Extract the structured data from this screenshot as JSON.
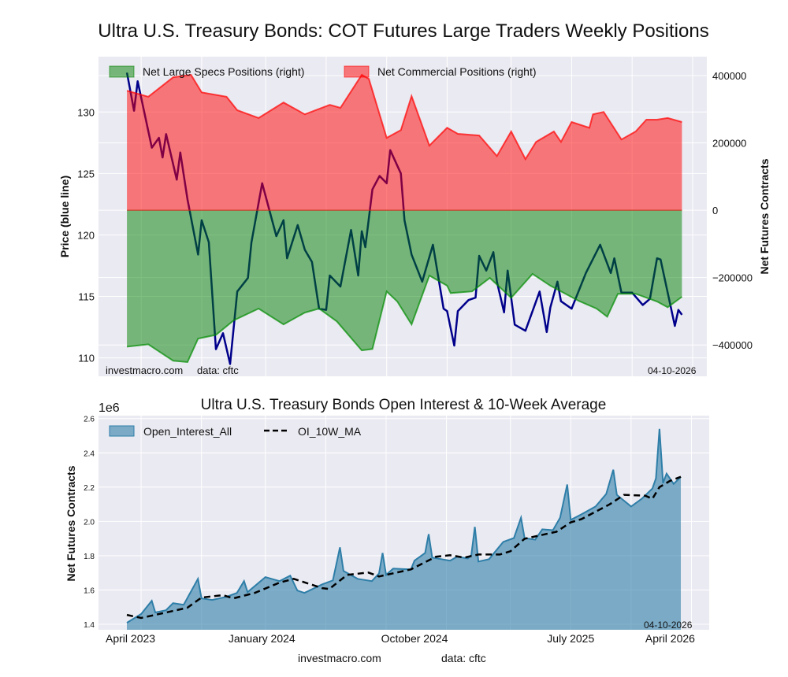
{
  "title": "Ultra U.S. Treasury Bonds: COT Futures Large Traders Weekly Positions",
  "colors": {
    "specs": "#008000",
    "commercial": "#ff0000",
    "price": "#00008b",
    "oi": "#2e7ea8",
    "background": "#eaeaf2"
  },
  "chart_data": [
    {
      "type": "area",
      "x_unit": "weeks since first report",
      "ylabel_left": "Price (blue line)",
      "ylabel_right": "Net Futures Contracts",
      "ylim_left": [
        108.5,
        134.5
      ],
      "ylim_right": [
        -493000,
        456000
      ],
      "xlim": [
        -8,
        163
      ],
      "left_ticks": [
        110,
        115,
        120,
        125,
        130
      ],
      "right_ticks": [
        400000,
        200000,
        0,
        -200000,
        -400000
      ],
      "x_grid_weeks": [
        4,
        21,
        39,
        56,
        73,
        90,
        108,
        125,
        142,
        159
      ],
      "grid": true,
      "legend_position": "top",
      "legend": [
        "Net Large Specs Positions (right)",
        "Net Commercial Positions (right)"
      ],
      "annotation_source": "investmacro.com",
      "annotation_data": "data: cftc",
      "annotation_date": "04-10-2026",
      "series": [
        {
          "name": "Net Commercial Positions (right)",
          "axis": "right",
          "points": [
            [
              0,
              355000
            ],
            [
              6,
              337000
            ],
            [
              13,
              395000
            ],
            [
              18,
              402000
            ],
            [
              21,
              350000
            ],
            [
              28,
              337000
            ],
            [
              31,
              297000
            ],
            [
              37,
              274000
            ],
            [
              44,
              320000
            ],
            [
              50,
              285000
            ],
            [
              57,
              313000
            ],
            [
              60,
              304000
            ],
            [
              66,
              402000
            ],
            [
              68,
              390000
            ],
            [
              73,
              215000
            ],
            [
              77,
              238000
            ],
            [
              80,
              339000
            ],
            [
              85,
              192000
            ],
            [
              90,
              245000
            ],
            [
              93,
              227000
            ],
            [
              99,
              222000
            ],
            [
              104,
              161000
            ],
            [
              108,
              234000
            ],
            [
              112,
              152000
            ],
            [
              115,
              203000
            ],
            [
              120,
              234000
            ],
            [
              122,
              203000
            ],
            [
              125,
              262000
            ],
            [
              130,
              245000
            ],
            [
              131,
              285000
            ],
            [
              134,
              292000
            ],
            [
              139,
              210000
            ],
            [
              143,
              234000
            ],
            [
              146,
              269000
            ],
            [
              149,
              269000
            ],
            [
              152,
              274000
            ],
            [
              156,
              262000
            ]
          ]
        },
        {
          "name": "Net Large Specs Positions (right)",
          "axis": "right",
          "points": [
            [
              0,
              -405000
            ],
            [
              6,
              -398000
            ],
            [
              13,
              -447000
            ],
            [
              17,
              -451000
            ],
            [
              20,
              -381000
            ],
            [
              25,
              -370000
            ],
            [
              30,
              -327000
            ],
            [
              37,
              -292000
            ],
            [
              44,
              -339000
            ],
            [
              50,
              -304000
            ],
            [
              54,
              -292000
            ],
            [
              59,
              -330000
            ],
            [
              66,
              -416000
            ],
            [
              69,
              -412000
            ],
            [
              73,
              -241000
            ],
            [
              76,
              -271000
            ],
            [
              80,
              -339000
            ],
            [
              85,
              -194000
            ],
            [
              90,
              -224000
            ],
            [
              91,
              -246000
            ],
            [
              97,
              -241000
            ],
            [
              102,
              -201000
            ],
            [
              108,
              -260000
            ],
            [
              114,
              -189000
            ],
            [
              119,
              -224000
            ],
            [
              127,
              -269000
            ],
            [
              132,
              -292000
            ],
            [
              135,
              -316000
            ],
            [
              138,
              -248000
            ],
            [
              143,
              -248000
            ],
            [
              149,
              -271000
            ],
            [
              152,
              -288000
            ],
            [
              156,
              -257000
            ]
          ]
        },
        {
          "name": "Price",
          "axis": "left",
          "points": [
            [
              0,
              133.2
            ],
            [
              2,
              130.1
            ],
            [
              3,
              132.5
            ],
            [
              7,
              127.1
            ],
            [
              9,
              127.9
            ],
            [
              10,
              126.3
            ],
            [
              11,
              128.2
            ],
            [
              14,
              124.5
            ],
            [
              15,
              126.7
            ],
            [
              17,
              122.9
            ],
            [
              20,
              118.4
            ],
            [
              21,
              121.2
            ],
            [
              23,
              119.4
            ],
            [
              25,
              110.7
            ],
            [
              27,
              112
            ],
            [
              29,
              109.5
            ],
            [
              31,
              115.4
            ],
            [
              34,
              116.5
            ],
            [
              35,
              119.4
            ],
            [
              38,
              124.2
            ],
            [
              42,
              119.9
            ],
            [
              44,
              121.2
            ],
            [
              45,
              118.1
            ],
            [
              48,
              120.8
            ],
            [
              50,
              118.8
            ],
            [
              52,
              117.8
            ],
            [
              54,
              114
            ],
            [
              56,
              113.9
            ],
            [
              57,
              116.7
            ],
            [
              60,
              115.8
            ],
            [
              63,
              120.4
            ],
            [
              65,
              116.7
            ],
            [
              66,
              120.3
            ],
            [
              67,
              119
            ],
            [
              69,
              123.7
            ],
            [
              71,
              124.8
            ],
            [
              73,
              124.2
            ],
            [
              74,
              126.9
            ],
            [
              77,
              125
            ],
            [
              78,
              121.2
            ],
            [
              80,
              118.4
            ],
            [
              83,
              116.2
            ],
            [
              86,
              119.2
            ],
            [
              89,
              114
            ],
            [
              90,
              113.8
            ],
            [
              92,
              111
            ],
            [
              93,
              113.8
            ],
            [
              96,
              114.7
            ],
            [
              98,
              114.9
            ],
            [
              99,
              118.3
            ],
            [
              101,
              117.1
            ],
            [
              103,
              118.6
            ],
            [
              104,
              116.2
            ],
            [
              106,
              113.7
            ],
            [
              107,
              117.1
            ],
            [
              109,
              112.7
            ],
            [
              112,
              112.2
            ],
            [
              116,
              115.4
            ],
            [
              118,
              112.1
            ],
            [
              119,
              114.1
            ],
            [
              121,
              116.2
            ],
            [
              122,
              114.6
            ],
            [
              125,
              114
            ],
            [
              129,
              116.9
            ],
            [
              133,
              119.2
            ],
            [
              136,
              116.9
            ],
            [
              137,
              118.1
            ],
            [
              139,
              115.3
            ],
            [
              142,
              115.3
            ],
            [
              145,
              114.3
            ],
            [
              147,
              114.8
            ],
            [
              149,
              118.1
            ],
            [
              150,
              118
            ],
            [
              154,
              112.6
            ],
            [
              155,
              113.9
            ],
            [
              156,
              113.5
            ]
          ]
        }
      ]
    },
    {
      "type": "area",
      "title": "Ultra U.S. Treasury Bonds Open Interest & 10-Week Average",
      "ylabel": "Net Futures Contracts",
      "y_scale_label": "1e6",
      "ylim": [
        1.368,
        2.617
      ],
      "xlim": [
        -8,
        164
      ],
      "y_ticks": [
        1.4,
        1.6,
        1.8,
        2.0,
        2.2,
        2.4,
        2.6
      ],
      "x_ticks": [
        {
          "week": 1,
          "label": "April 2023"
        },
        {
          "week": 38,
          "label": "January 2024"
        },
        {
          "week": 81,
          "label": "October 2024"
        },
        {
          "week": 125,
          "label": "July 2025"
        },
        {
          "week": 153,
          "label": "April 2026"
        }
      ],
      "x_grid_weeks": [
        4,
        21,
        39,
        56,
        73,
        90,
        108,
        125,
        142,
        159
      ],
      "grid": true,
      "legend_position": "top-left",
      "legend": [
        "Open_Interest_All",
        "OI_10W_MA"
      ],
      "annotation_date": "04-10-2026",
      "series": [
        {
          "name": "Open_Interest_All",
          "points": [
            [
              0,
              1.409
            ],
            [
              4,
              1.46
            ],
            [
              7,
              1.537
            ],
            [
              8,
              1.469
            ],
            [
              11,
              1.482
            ],
            [
              13,
              1.523
            ],
            [
              16,
              1.514
            ],
            [
              20,
              1.665
            ],
            [
              21,
              1.551
            ],
            [
              24,
              1.542
            ],
            [
              28,
              1.56
            ],
            [
              31,
              1.583
            ],
            [
              33,
              1.652
            ],
            [
              34,
              1.588
            ],
            [
              39,
              1.675
            ],
            [
              43,
              1.652
            ],
            [
              46,
              1.684
            ],
            [
              48,
              1.597
            ],
            [
              50,
              1.583
            ],
            [
              55,
              1.633
            ],
            [
              58,
              1.656
            ],
            [
              60,
              1.849
            ],
            [
              61,
              1.711
            ],
            [
              65,
              1.665
            ],
            [
              69,
              1.652
            ],
            [
              71,
              1.697
            ],
            [
              72,
              1.816
            ],
            [
              73,
              1.688
            ],
            [
              75,
              1.725
            ],
            [
              80,
              1.72
            ],
            [
              81,
              1.771
            ],
            [
              84,
              1.816
            ],
            [
              85,
              1.926
            ],
            [
              86,
              1.789
            ],
            [
              91,
              1.771
            ],
            [
              93,
              1.794
            ],
            [
              96,
              1.784
            ],
            [
              97,
              1.803
            ],
            [
              98,
              1.968
            ],
            [
              99,
              1.766
            ],
            [
              102,
              1.78
            ],
            [
              106,
              1.881
            ],
            [
              109,
              1.903
            ],
            [
              111,
              2.022
            ],
            [
              112,
              1.903
            ],
            [
              115,
              1.894
            ],
            [
              117,
              1.954
            ],
            [
              120,
              1.949
            ],
            [
              122,
              2.022
            ],
            [
              124,
              2.215
            ],
            [
              125,
              2.009
            ],
            [
              128,
              2.041
            ],
            [
              132,
              2.087
            ],
            [
              135,
              2.16
            ],
            [
              137,
              2.302
            ],
            [
              138,
              2.155
            ],
            [
              142,
              2.087
            ],
            [
              145,
              2.132
            ],
            [
              148,
              2.192
            ],
            [
              149,
              2.251
            ],
            [
              150,
              2.54
            ],
            [
              151,
              2.224
            ],
            [
              152,
              2.279
            ],
            [
              154,
              2.219
            ],
            [
              156,
              2.26
            ]
          ]
        },
        {
          "name": "OI_10W_MA",
          "points": [
            [
              0,
              1.455
            ],
            [
              4,
              1.437
            ],
            [
              17,
              1.496
            ],
            [
              21,
              1.556
            ],
            [
              27,
              1.57
            ],
            [
              30,
              1.551
            ],
            [
              36,
              1.583
            ],
            [
              43,
              1.643
            ],
            [
              47,
              1.665
            ],
            [
              55,
              1.611
            ],
            [
              57,
              1.606
            ],
            [
              62,
              1.688
            ],
            [
              68,
              1.702
            ],
            [
              71,
              1.679
            ],
            [
              80,
              1.72
            ],
            [
              87,
              1.794
            ],
            [
              91,
              1.803
            ],
            [
              95,
              1.789
            ],
            [
              99,
              1.807
            ],
            [
              105,
              1.807
            ],
            [
              108,
              1.826
            ],
            [
              112,
              1.899
            ],
            [
              121,
              1.94
            ],
            [
              125,
              1.995
            ],
            [
              128,
              2.013
            ],
            [
              136,
              2.1
            ],
            [
              140,
              2.155
            ],
            [
              146,
              2.15
            ],
            [
              148,
              2.132
            ],
            [
              150,
              2.2
            ],
            [
              153,
              2.237
            ],
            [
              156,
              2.26
            ]
          ]
        }
      ]
    }
  ],
  "footer": {
    "source": "investmacro.com",
    "data": "data: cftc"
  }
}
